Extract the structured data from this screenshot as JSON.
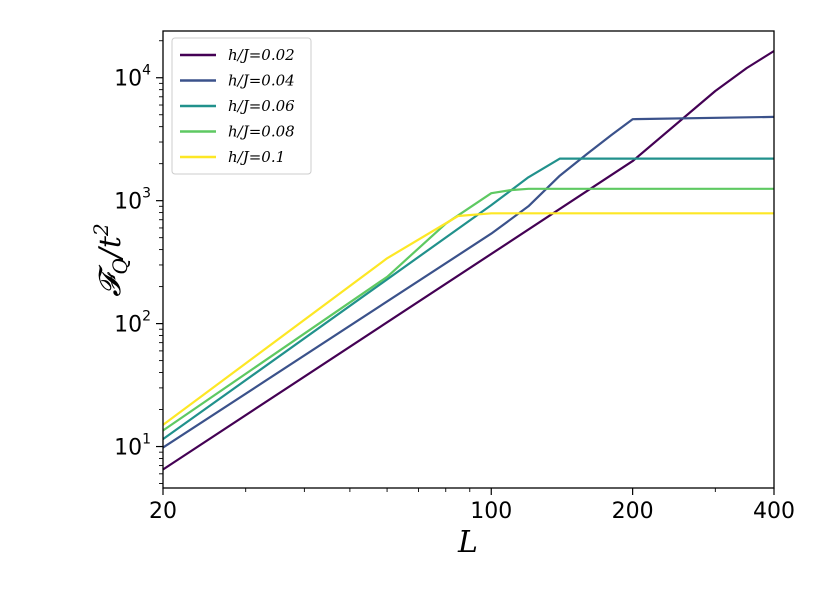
{
  "chart_data": {
    "type": "line",
    "xscale": "log",
    "yscale": "log",
    "xlim": [
      20,
      400
    ],
    "ylim": [
      4.6,
      24000
    ],
    "xlabel": "L",
    "ylabel": "𝓕Q/t²",
    "ylabel_main": "𝓕",
    "ylabel_sub": "Q",
    "ylabel_rest": "/t",
    "ylabel_sup": "2",
    "x_ticks": [
      20,
      100,
      200,
      400
    ],
    "x_tick_labels": [
      "20",
      "100",
      "200",
      "400"
    ],
    "y_ticks": [
      10,
      100,
      1000,
      10000
    ],
    "y_tick_labels": [
      {
        "base": "10",
        "exp": "1"
      },
      {
        "base": "10",
        "exp": "2"
      },
      {
        "base": "10",
        "exp": "3"
      },
      {
        "base": "10",
        "exp": "4"
      }
    ],
    "legend_position": "top-left",
    "series": [
      {
        "name": "h/J=0.02",
        "color": "#440154",
        "x": [
          20,
          200,
          300,
          350,
          400
        ],
        "y": [
          6.5,
          2100,
          7800,
          12000,
          16500
        ]
      },
      {
        "name": "h/J=0.04",
        "color": "#3b528b",
        "x": [
          20,
          100,
          120,
          140,
          160,
          180,
          200,
          400
        ],
        "y": [
          9.8,
          540,
          900,
          1600,
          2400,
          3400,
          4600,
          4800
        ]
      },
      {
        "name": "h/J=0.06",
        "color": "#21918c",
        "x": [
          20,
          100,
          120,
          140,
          400
        ],
        "y": [
          11.5,
          920,
          1550,
          2200,
          2200
        ]
      },
      {
        "name": "h/J=0.08",
        "color": "#5ec962",
        "x": [
          20,
          60,
          80,
          100,
          110,
          120,
          400
        ],
        "y": [
          13.5,
          240,
          650,
          1150,
          1220,
          1250,
          1250
        ]
      },
      {
        "name": "h/J=0.1",
        "color": "#fde725",
        "x": [
          20,
          60,
          85,
          100,
          400
        ],
        "y": [
          15,
          340,
          750,
          790,
          790
        ]
      }
    ]
  }
}
